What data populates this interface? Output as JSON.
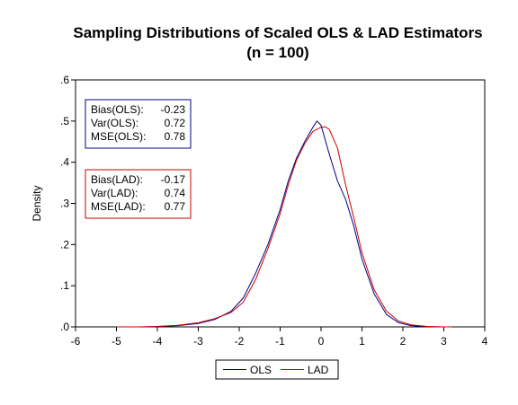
{
  "chart_data": {
    "type": "line",
    "title": "Sampling Distributions of Scaled OLS & LAD Estimators",
    "subtitle": "(n = 100)",
    "ylabel": "Density",
    "xlabel": "",
    "xlim": [
      -6,
      4
    ],
    "ylim": [
      0,
      0.6
    ],
    "x_ticks": [
      -6,
      -5,
      -4,
      -3,
      -2,
      -1,
      0,
      1,
      2,
      3,
      4
    ],
    "x_tick_labels": [
      "-6",
      "-5",
      "-4",
      "-3",
      "-2",
      "-1",
      "0",
      "1",
      "2",
      "3",
      "4"
    ],
    "y_ticks": [
      0,
      0.1,
      0.2,
      0.3,
      0.4,
      0.5,
      0.6
    ],
    "y_tick_labels": [
      ".0",
      ".1",
      ".2",
      ".3",
      ".4",
      ".5",
      ".6"
    ],
    "grid": false,
    "legend_position": "bottom-center",
    "series": [
      {
        "name": "OLS",
        "color": "#00008b",
        "x": [
          -4.3,
          -4.0,
          -3.5,
          -3.0,
          -2.6,
          -2.2,
          -1.9,
          -1.6,
          -1.3,
          -1.0,
          -0.8,
          -0.6,
          -0.4,
          -0.2,
          -0.1,
          0.0,
          0.2,
          0.4,
          0.6,
          0.8,
          1.0,
          1.3,
          1.6,
          1.9,
          2.2,
          2.6,
          3.0
        ],
        "y": [
          0.0,
          0.001,
          0.003,
          0.008,
          0.018,
          0.038,
          0.07,
          0.13,
          0.2,
          0.285,
          0.355,
          0.41,
          0.45,
          0.485,
          0.5,
          0.49,
          0.42,
          0.355,
          0.31,
          0.245,
          0.165,
          0.08,
          0.03,
          0.01,
          0.003,
          0.0005,
          0.0
        ]
      },
      {
        "name": "LAD",
        "color": "#cc0000",
        "x": [
          -5.0,
          -4.5,
          -4.0,
          -3.5,
          -3.0,
          -2.6,
          -2.2,
          -1.9,
          -1.6,
          -1.3,
          -1.0,
          -0.8,
          -0.6,
          -0.4,
          -0.2,
          0.0,
          0.1,
          0.2,
          0.4,
          0.6,
          0.8,
          1.0,
          1.3,
          1.6,
          1.9,
          2.2,
          2.6,
          3.0,
          3.2
        ],
        "y": [
          0.0,
          0.0,
          0.001,
          0.004,
          0.01,
          0.02,
          0.035,
          0.06,
          0.115,
          0.19,
          0.275,
          0.345,
          0.405,
          0.445,
          0.475,
          0.485,
          0.486,
          0.48,
          0.435,
          0.345,
          0.265,
          0.18,
          0.09,
          0.038,
          0.014,
          0.005,
          0.001,
          0.0,
          0.0
        ]
      }
    ],
    "annotations": {
      "ols_box": {
        "color": "#00008b",
        "lines": [
          {
            "label": "Bias(OLS):",
            "value": "-0.23"
          },
          {
            "label": "Var(OLS):",
            "value": "0.72"
          },
          {
            "label": "MSE(OLS):",
            "value": "0.78"
          }
        ]
      },
      "lad_box": {
        "color": "#cc0000",
        "lines": [
          {
            "label": "Bias(LAD):",
            "value": "-0.17"
          },
          {
            "label": "Var(LAD):",
            "value": "0.74"
          },
          {
            "label": "MSE(LAD):",
            "value": "0.77"
          }
        ]
      }
    }
  }
}
